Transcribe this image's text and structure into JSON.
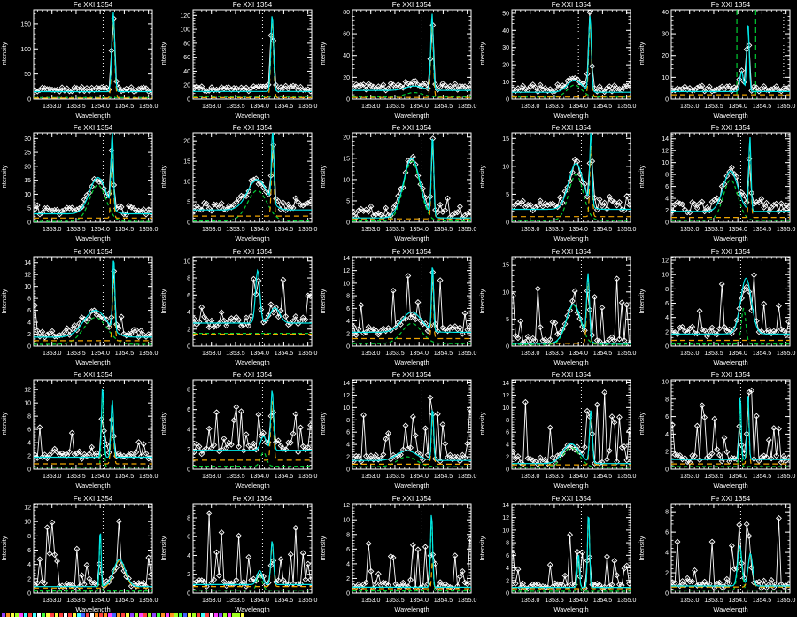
{
  "figure": {
    "background": "#000000",
    "note_strip_present": true
  },
  "chart_data": {
    "type": "line",
    "grid": [
      5,
      5
    ],
    "title_each": "Fe XXI 1354",
    "xlabel": "Wavelength",
    "ylabel": "Intensity",
    "xlim": [
      1352.62,
      1355.08
    ],
    "xticks": [
      1353.0,
      1353.5,
      1354.0,
      1354.5,
      1355.0
    ],
    "xtick_labels": [
      "1353.0",
      "1353.5",
      "1354.0",
      "1354.5",
      "1355.0"
    ],
    "x_minor_step": 0.1,
    "legend": "none",
    "colors": {
      "data": "#ffffff",
      "fit_total": "#00e8e8",
      "component_green": "#00cc33",
      "component_orange": "#f0a500",
      "reference_line": "#ffffff",
      "window_line": "#00cc33"
    },
    "marker": "open-diamond",
    "default_reference_wavelength": 1354.06,
    "panels": [
      {
        "r": 0,
        "c": 0,
        "title": "Fe XXI 1354",
        "ylim": [
          0,
          178
        ],
        "yticks": [
          0,
          50,
          100,
          150
        ],
        "base": 15,
        "comps": [
          [
            1354.27,
            0.03,
            158,
            "o",
            1
          ]
        ],
        "gbase": 3,
        "obase": 2,
        "nbase": 10,
        "nmax": 10,
        "np": 0.45,
        "follow": 1,
        "vdot": 1354.06
      },
      {
        "r": 0,
        "c": 1,
        "title": "Fe XXI 1354",
        "ylim": [
          0,
          128
        ],
        "yticks": [
          0,
          20,
          40,
          60,
          80,
          100,
          120
        ],
        "base": 11,
        "comps": [
          [
            1354.26,
            0.028,
            110,
            "o",
            1
          ]
        ],
        "gbase": 3.5,
        "obase": 2,
        "nbase": 9,
        "nmax": 12,
        "np": 0.45,
        "follow": 1,
        "vdot": 1354.06
      },
      {
        "r": 0,
        "c": 2,
        "title": "Fe XXI 1354",
        "ylim": [
          0,
          82
        ],
        "yticks": [
          0,
          20,
          40,
          60,
          80
        ],
        "base": 8,
        "comps": [
          [
            1353.9,
            0.18,
            4,
            "g",
            1
          ],
          [
            1354.27,
            0.026,
            70,
            "o",
            1
          ]
        ],
        "gbase": 2,
        "obase": 1.5,
        "nbase": 7,
        "nmax": 8,
        "np": 0.45,
        "follow": 1,
        "vdot": 1354.06
      },
      {
        "r": 0,
        "c": 3,
        "title": "Fe XXI 1354",
        "ylim": [
          0,
          52
        ],
        "yticks": [
          0,
          10,
          20,
          30,
          40,
          50
        ],
        "base": 4,
        "comps": [
          [
            1353.92,
            0.15,
            7,
            "g",
            1
          ],
          [
            1354.24,
            0.028,
            44,
            "o",
            1
          ]
        ],
        "gbase": 1.2,
        "obase": 1.2,
        "nbase": 5,
        "nmax": 6,
        "np": 0.45,
        "follow": 1,
        "vdot": 1354.0
      },
      {
        "r": 0,
        "c": 4,
        "title": "Fe XXI 1354",
        "ylim": [
          0,
          41
        ],
        "yticks": [
          0,
          10,
          20,
          30,
          40
        ],
        "base": 3.5,
        "comps": [
          [
            1354.08,
            0.035,
            9,
            "c",
            1
          ],
          [
            1354.21,
            0.025,
            32,
            "c",
            1
          ]
        ],
        "gbase": null,
        "obase": 2,
        "nbase": 3,
        "nmax": 8,
        "np": 0.45,
        "follow": 1,
        "vdot": 1354.95,
        "vgreen": [
          1353.98,
          1354.37
        ]
      },
      {
        "r": 1,
        "c": 0,
        "title": "Fe XXI 1354",
        "ylim": [
          0,
          32
        ],
        "yticks": [
          0,
          5,
          10,
          15,
          20,
          25,
          30
        ],
        "base": 3,
        "comps": [
          [
            1353.95,
            0.17,
            13,
            "g",
            1
          ],
          [
            1354.25,
            0.024,
            27,
            "o",
            1
          ]
        ],
        "gbase": 0.3,
        "obase": 1.5,
        "nbase": 3,
        "nmax": 7,
        "np": 0.5,
        "follow": 0.9,
        "vdot": 1354.06
      },
      {
        "r": 1,
        "c": 1,
        "title": "Fe XXI 1354",
        "ylim": [
          0,
          22
        ],
        "yticks": [
          0,
          5,
          10,
          15,
          20
        ],
        "base": 3,
        "comps": [
          [
            1353.95,
            0.2,
            7.5,
            "g",
            1
          ],
          [
            1354.27,
            0.024,
            18,
            "o",
            1
          ]
        ],
        "gbase": 0.3,
        "obase": 1.5,
        "nbase": 2.5,
        "nmax": 6,
        "np": 0.5,
        "follow": 0.9,
        "vdot": 1354.06
      },
      {
        "r": 1,
        "c": 2,
        "title": "Fe XXI 1354",
        "ylim": [
          0,
          21
        ],
        "yticks": [
          0,
          5,
          10,
          15,
          20
        ],
        "base": 1,
        "comps": [
          [
            1353.85,
            0.17,
            14,
            "g",
            1
          ],
          [
            1354.28,
            0.024,
            19,
            "o",
            1
          ]
        ],
        "gbase": 0.3,
        "obase": 0.8,
        "nbase": 2.5,
        "nmax": 6,
        "np": 0.5,
        "follow": 0.9,
        "vdot": 1354.06
      },
      {
        "r": 1,
        "c": 3,
        "title": "Fe XXI 1354",
        "ylim": [
          0,
          16
        ],
        "yticks": [
          0,
          5,
          10,
          15
        ],
        "base": 2.3,
        "comps": [
          [
            1353.95,
            0.15,
            8.2,
            "g",
            1
          ],
          [
            1354.26,
            0.024,
            13,
            "o",
            1
          ]
        ],
        "gbase": 0.3,
        "obase": 1.0,
        "nbase": 2.2,
        "nmax": 5,
        "np": 0.5,
        "follow": 0.9,
        "vdot": 1354.06
      },
      {
        "r": 1,
        "c": 4,
        "title": "Fe XXI 1354",
        "ylim": [
          0,
          15
        ],
        "yticks": [
          0,
          2,
          4,
          6,
          8,
          10,
          12,
          14
        ],
        "base": 1.8,
        "comps": [
          [
            1353.85,
            0.15,
            6.8,
            "g",
            1
          ],
          [
            1354.25,
            0.022,
            12.5,
            "o",
            1
          ]
        ],
        "gbase": 0.3,
        "obase": 0.8,
        "nbase": 2,
        "nmax": 6,
        "np": 0.5,
        "follow": 0.9,
        "vdot": 1354.06
      },
      {
        "r": 2,
        "c": 0,
        "title": "Fe XXI 1354",
        "ylim": [
          0,
          15
        ],
        "yticks": [
          0,
          2,
          4,
          6,
          8,
          10,
          12,
          14
        ],
        "base": 1.5,
        "comps": [
          [
            1353.9,
            0.24,
            4.5,
            "g",
            1
          ],
          [
            1354.28,
            0.022,
            12.3,
            "o",
            1
          ]
        ],
        "gbase": 0.3,
        "obase": 0.9,
        "nbase": 1.8,
        "nmax": 7,
        "np": 0.5,
        "follow": 0.8,
        "vdot": 1354.06
      },
      {
        "r": 2,
        "c": 1,
        "title": "Fe XXI 1354",
        "ylim": [
          0,
          10.5
        ],
        "yticks": [
          0,
          2,
          4,
          6,
          8,
          10
        ],
        "base": 2.7,
        "comps": [
          [
            1353.96,
            0.045,
            6.2,
            "c",
            1
          ],
          [
            1354.32,
            0.1,
            1.8,
            "c",
            1
          ]
        ],
        "gbase": 1.5,
        "obase": 1.4,
        "nbase": 1.5,
        "nmax": 9,
        "np": 0.5,
        "follow": 0.8,
        "vdot": 1354.06
      },
      {
        "r": 2,
        "c": 2,
        "title": "Fe XXI 1354",
        "ylim": [
          0,
          14.2
        ],
        "yticks": [
          0,
          2,
          4,
          6,
          8,
          10,
          12,
          14
        ],
        "base": 2.2,
        "comps": [
          [
            1353.85,
            0.2,
            3.2,
            "g",
            1
          ],
          [
            1354.28,
            0.02,
            10.8,
            "o",
            1
          ]
        ],
        "gbase": 0.4,
        "obase": 1.2,
        "nbase": 1.6,
        "nmax": 12,
        "np": 0.5,
        "follow": 0.8,
        "vdot": 1354.06
      },
      {
        "r": 2,
        "c": 3,
        "title": "Fe XXI 1354",
        "ylim": [
          0,
          16.5
        ],
        "yticks": [
          0,
          5,
          10,
          15
        ],
        "base": 0.5,
        "comps": [
          [
            1353.9,
            0.15,
            7.2,
            "g",
            1
          ],
          [
            1354.2,
            0.028,
            12,
            "o",
            1
          ]
        ],
        "gbase": 0.3,
        "obase": 0.5,
        "nbase": 1.5,
        "nmax": 14,
        "np": 0.5,
        "follow": 0.8,
        "vdot": 1354.06
      },
      {
        "r": 2,
        "c": 4,
        "title": "Fe XXI 1354",
        "ylim": [
          0,
          12.5
        ],
        "yticks": [
          0,
          2,
          4,
          6,
          8,
          10,
          12
        ],
        "base": 1.7,
        "comps": [
          [
            1354.17,
            0.11,
            7.8,
            "c",
            1
          ],
          [
            1354.12,
            0.045,
            5,
            "g",
            0
          ]
        ],
        "gbase": 0.3,
        "obase": 0.8,
        "nbase": 1.5,
        "nmax": 10,
        "np": 0.5,
        "follow": 0.8,
        "vdot": 1354.06
      },
      {
        "r": 3,
        "c": 0,
        "title": "Fe XXI 1354",
        "ylim": [
          0,
          13.5
        ],
        "yticks": [
          0,
          2,
          4,
          6,
          8,
          10,
          12
        ],
        "base": 1.8,
        "comps": [
          [
            1354.05,
            0.024,
            10.7,
            "g",
            1
          ],
          [
            1354.25,
            0.026,
            8.7,
            "o",
            1
          ]
        ],
        "gbase": 0.3,
        "obase": 0.8,
        "nbase": 1.4,
        "nmax": 6.5,
        "np": 0.5,
        "follow": 0.8,
        "vdot": 1354.06
      },
      {
        "r": 3,
        "c": 1,
        "title": "Fe XXI 1354",
        "ylim": [
          0,
          9
        ],
        "yticks": [
          0,
          2,
          4,
          6,
          8
        ],
        "base": 1.9,
        "comps": [
          [
            1354.08,
            0.06,
            1.4,
            "g",
            1
          ],
          [
            1354.26,
            0.028,
            6.1,
            "o",
            1
          ]
        ],
        "gbase": 0.3,
        "obase": 0.9,
        "nbase": 1.3,
        "nmax": 7.5,
        "np": 0.5,
        "follow": 0.8,
        "vdot": 1354.06
      },
      {
        "r": 3,
        "c": 2,
        "title": "Fe XXI 1354",
        "ylim": [
          0,
          14.5
        ],
        "yticks": [
          0,
          2,
          4,
          6,
          8,
          10,
          12,
          14
        ],
        "base": 1.4,
        "comps": [
          [
            1353.75,
            0.2,
            1.6,
            "g",
            1
          ],
          [
            1354.28,
            0.022,
            8.6,
            "o",
            1
          ]
        ],
        "gbase": 0.4,
        "obase": 0.8,
        "nbase": 1.3,
        "nmax": 13,
        "np": 0.5,
        "follow": 0.8,
        "vdot": 1354.06
      },
      {
        "r": 3,
        "c": 3,
        "title": "Fe XXI 1354",
        "ylim": [
          0,
          14.5
        ],
        "yticks": [
          0,
          2,
          4,
          6,
          8,
          10,
          12,
          14
        ],
        "base": 0.9,
        "comps": [
          [
            1353.85,
            0.17,
            3.2,
            "g",
            1
          ],
          [
            1354.26,
            0.028,
            8.6,
            "o",
            1
          ]
        ],
        "gbase": 0.3,
        "obase": 0.7,
        "nbase": 1.2,
        "nmax": 12.5,
        "np": 0.5,
        "follow": 0.8,
        "vdot": 1354.06
      },
      {
        "r": 3,
        "c": 4,
        "title": "Fe XXI 1354",
        "ylim": [
          0,
          10.2
        ],
        "yticks": [
          0,
          2,
          4,
          6,
          8,
          10
        ],
        "base": 1.1,
        "comps": [
          [
            1354.05,
            0.02,
            7.4,
            "g",
            1
          ],
          [
            1354.21,
            0.02,
            7.9,
            "o",
            1
          ]
        ],
        "gbase": 0.3,
        "obase": 0.6,
        "nbase": 1.2,
        "nmax": 9,
        "np": 0.5,
        "follow": 0.7,
        "vdot": 1354.06
      },
      {
        "r": 4,
        "c": 0,
        "title": "Fe XXI 1354",
        "ylim": [
          0,
          12.5
        ],
        "yticks": [
          0,
          2,
          4,
          6,
          8,
          10,
          12
        ],
        "base": 0.9,
        "comps": [
          [
            1354.0,
            0.018,
            8.2,
            "g",
            1
          ],
          [
            1354.4,
            0.12,
            3.8,
            "o",
            1
          ]
        ],
        "gbase": 0.3,
        "obase": 0.7,
        "nbase": 1.1,
        "nmax": 10.5,
        "np": 0.5,
        "follow": 0.7,
        "vdot": 1354.06
      },
      {
        "r": 4,
        "c": 1,
        "title": "Fe XXI 1354",
        "ylim": [
          0,
          9.5
        ],
        "yticks": [
          0,
          2,
          4,
          6,
          8
        ],
        "base": 0.9,
        "comps": [
          [
            1354.0,
            0.055,
            1.5,
            "g",
            1
          ],
          [
            1354.26,
            0.028,
            4.7,
            "o",
            1
          ]
        ],
        "gbase": 0.3,
        "obase": 0.7,
        "nbase": 1.0,
        "nmax": 8.5,
        "np": 0.5,
        "follow": 0.7,
        "vdot": 1354.06
      },
      {
        "r": 4,
        "c": 2,
        "title": "Fe XXI 1354",
        "ylim": [
          0,
          12.2
        ],
        "yticks": [
          0,
          2,
          4,
          6,
          8,
          10,
          12
        ],
        "base": 0.8,
        "comps": [
          [
            1354.26,
            0.022,
            10.2,
            "g",
            1
          ],
          [
            1354.28,
            0.018,
            4,
            "o",
            0
          ]
        ],
        "gbase": 0.3,
        "obase": 0.6,
        "nbase": 1.0,
        "nmax": 7.5,
        "np": 0.5,
        "follow": 0.75,
        "vdot": 1354.06
      },
      {
        "r": 4,
        "c": 3,
        "title": "Fe XXI 1354",
        "ylim": [
          0,
          14.2
        ],
        "yticks": [
          0,
          2,
          4,
          6,
          8,
          10,
          12,
          14
        ],
        "base": 0.9,
        "comps": [
          [
            1354.0,
            0.022,
            5.4,
            "g",
            1
          ],
          [
            1354.21,
            0.02,
            12.2,
            "o",
            1
          ]
        ],
        "gbase": 0.3,
        "obase": 0.7,
        "nbase": 1.0,
        "nmax": 9.5,
        "np": 0.5,
        "follow": 0.75,
        "vdot": 1354.06
      },
      {
        "r": 4,
        "c": 4,
        "title": "Fe XXI 1354",
        "ylim": [
          0,
          8.8
        ],
        "yticks": [
          0,
          2,
          4,
          6,
          8
        ],
        "base": 0.7,
        "comps": [
          [
            1354.04,
            0.045,
            3.9,
            "g",
            1
          ],
          [
            1354.26,
            0.045,
            3.2,
            "o",
            1
          ]
        ],
        "gbase": 0.3,
        "obase": 0.6,
        "nbase": 0.9,
        "nmax": 7.5,
        "np": 0.5,
        "follow": 0.7,
        "vdot": 1354.06
      }
    ],
    "n_samples": 48,
    "bottom_strip_palette": [
      "#ff4040",
      "#40ff40",
      "#4060ff",
      "#ffff40",
      "#ff40ff",
      "#40ffff",
      "#ff9020",
      "#a0ff20",
      "#ffffff",
      "#9040ff"
    ]
  }
}
